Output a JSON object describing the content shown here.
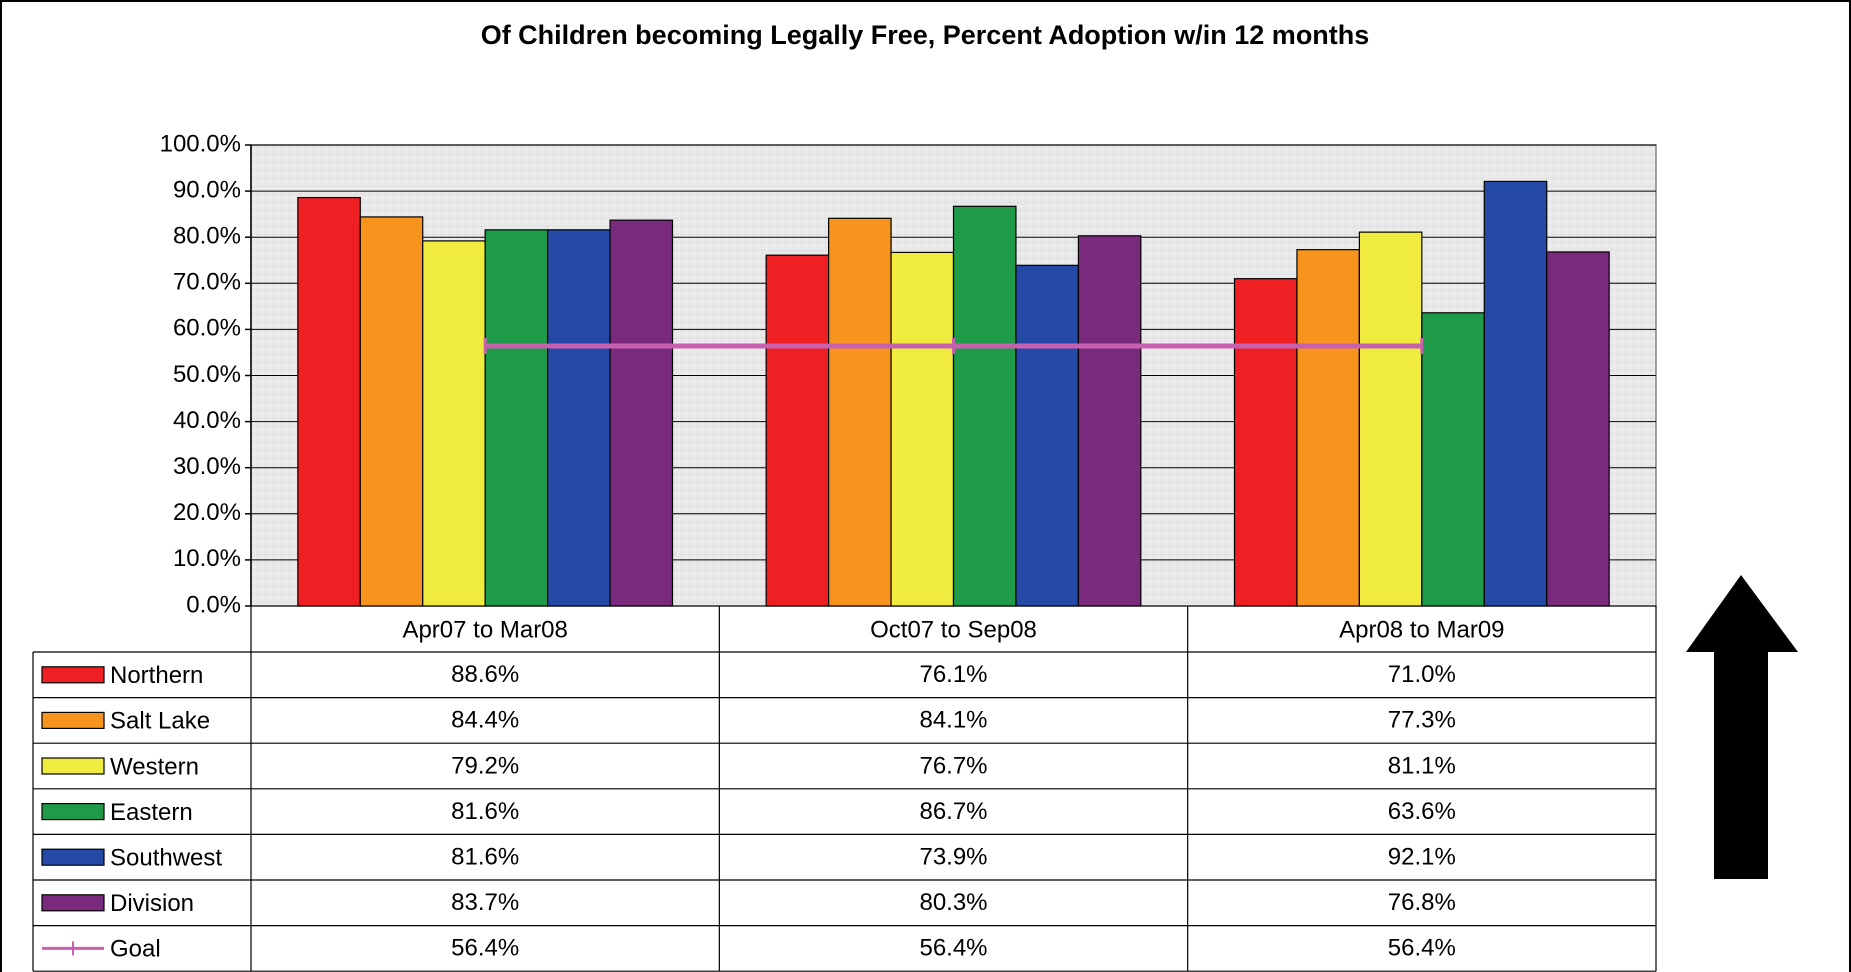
{
  "chart_data": {
    "type": "bar",
    "title": "Of Children becoming Legally Free, Percent Adoption w/in 12 months",
    "categories": [
      "Apr07 to Mar08",
      "Oct07 to Sep08",
      "Apr08 to Mar09"
    ],
    "series": [
      {
        "name": "Northern",
        "color": "#ee2024",
        "values": [
          88.6,
          76.1,
          71.0
        ],
        "value_labels": [
          "88.6%",
          "76.1%",
          "71.0%"
        ]
      },
      {
        "name": "Salt Lake",
        "color": "#f7941d",
        "values": [
          84.4,
          84.1,
          77.3
        ],
        "value_labels": [
          "84.4%",
          "84.1%",
          "77.3%"
        ]
      },
      {
        "name": "Western",
        "color": "#f0ec3f",
        "values": [
          79.2,
          76.7,
          81.1
        ],
        "value_labels": [
          "79.2%",
          "76.7%",
          "81.1%"
        ]
      },
      {
        "name": "Eastern",
        "color": "#1e9a48",
        "values": [
          81.6,
          86.7,
          63.6
        ],
        "value_labels": [
          "81.6%",
          "86.7%",
          "63.6%"
        ]
      },
      {
        "name": "Southwest",
        "color": "#254aa5",
        "values": [
          81.6,
          73.9,
          92.1
        ],
        "value_labels": [
          "81.6%",
          "73.9%",
          "92.1%"
        ]
      },
      {
        "name": "Division",
        "color": "#7a2a7d",
        "values": [
          83.7,
          80.3,
          76.8
        ],
        "value_labels": [
          "83.7%",
          "80.3%",
          "76.8%"
        ]
      },
      {
        "name": "Goal",
        "color": "#c860b0",
        "type": "line",
        "values": [
          56.4,
          56.4,
          56.4
        ],
        "value_labels": [
          "56.4%",
          "56.4%",
          "56.4%"
        ]
      }
    ],
    "ylim": [
      0,
      100
    ],
    "yticks": [
      {
        "value": 0,
        "label": "0.0%"
      },
      {
        "value": 10,
        "label": "10.0%"
      },
      {
        "value": 20,
        "label": "20.0%"
      },
      {
        "value": 30,
        "label": "30.0%"
      },
      {
        "value": 40,
        "label": "40.0%"
      },
      {
        "value": 50,
        "label": "50.0%"
      },
      {
        "value": 60,
        "label": "60.0%"
      },
      {
        "value": 70,
        "label": "70.0%"
      },
      {
        "value": 80,
        "label": "80.0%"
      },
      {
        "value": 90,
        "label": "90.0%"
      },
      {
        "value": 100,
        "label": "100.0%"
      }
    ],
    "grid": true
  }
}
